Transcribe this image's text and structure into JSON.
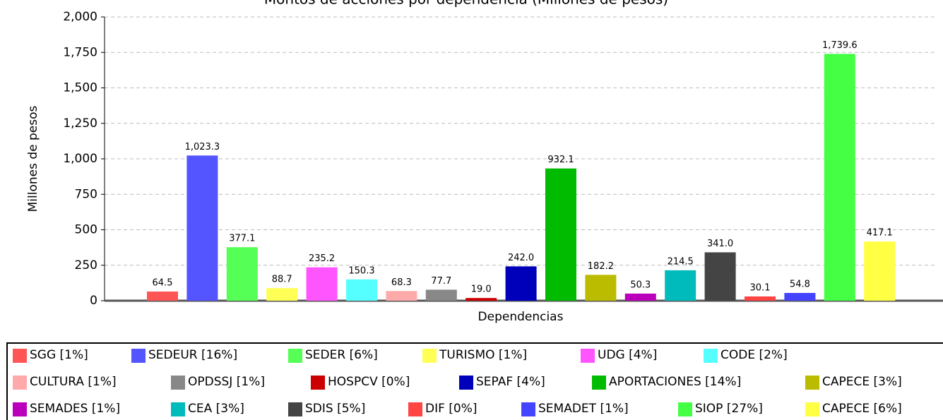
{
  "chart_data": {
    "type": "bar",
    "title": "Montos de acciones por dependencia (Millones de pesos)",
    "x_label": "Dependencias",
    "y_label": "Millones de pesos",
    "categories": [
      "SGG [1%]",
      "SEDEUR [16%]",
      "SEDER [6%]",
      "TURISMO [1%]",
      "UDG [4%]",
      "CODE [2%]",
      "CULTURA [1%]",
      "OPDSSJ [1%]",
      "HOSPCV [0%]",
      "SEPAF [4%]",
      "APORTACIONES [14%]",
      "CAPECE [3%]",
      "SEMADES [1%]",
      "CEA [3%]",
      "SDIS [5%]",
      "DIF [0%]",
      "SEMADET [1%]",
      "SIOP [27%]",
      "CAPECE [6%]"
    ],
    "values": [
      64.5,
      1023.3,
      377.1,
      88.7,
      235.2,
      150.3,
      68.3,
      77.7,
      19.0,
      242.0,
      932.1,
      182.2,
      50.3,
      214.5,
      341.0,
      30.1,
      54.8,
      1739.6,
      417.1
    ],
    "value_labels": [
      "64.5",
      "1,023.3",
      "377.1",
      "88.7",
      "235.2",
      "150.3",
      "68.3",
      "77.7",
      "19.0",
      "242.0",
      "932.1",
      "182.2",
      "50.3",
      "214.5",
      "341.0",
      "30.1",
      "54.8",
      "1,739.6",
      "417.1"
    ],
    "colors": [
      "#ff5555",
      "#5555ff",
      "#55ff55",
      "#ffff55",
      "#ff55ff",
      "#55ffff",
      "#ffaaaa",
      "#888888",
      "#cc0000",
      "#0000bb",
      "#00bb00",
      "#bbbb00",
      "#bb00bb",
      "#00bbbb",
      "#444444",
      "#ff4444",
      "#4444ff",
      "#44ff44",
      "#ffff44"
    ],
    "ylim": [
      0,
      2000
    ],
    "yticks": [
      0,
      250,
      500,
      750,
      {
        "value": 1000,
        "label": "1,000"
      },
      {
        "value": 1250,
        "label": "1,250"
      },
      {
        "value": 1500,
        "label": "1,500"
      },
      {
        "value": 1750,
        "label": "1,750"
      },
      {
        "value": 2000,
        "label": "2,000"
      }
    ],
    "grid": true
  }
}
